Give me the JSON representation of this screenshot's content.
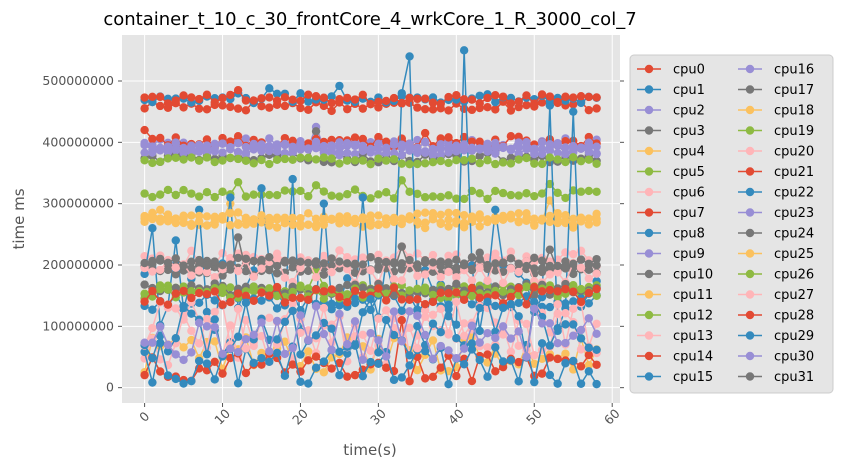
{
  "chart_data": {
    "type": "line",
    "title": "container_t_10_c_30_frontCore_4_wrkCore_1_R_3000_col_7",
    "xlabel": "time(s)",
    "ylabel": "time ms",
    "xlim": [
      -2.9,
      61
    ],
    "ylim": [
      -25000000,
      575000000
    ],
    "xticks": [
      0,
      10,
      20,
      30,
      40,
      50,
      60
    ],
    "yticks": [
      0,
      100000000,
      200000000,
      300000000,
      400000000,
      500000000
    ],
    "xtick_labels": [
      "0",
      "10",
      "20",
      "30",
      "40",
      "50",
      "60"
    ],
    "ytick_labels": [
      "0",
      "100000000",
      "200000000",
      "300000000",
      "400000000",
      "500000000"
    ],
    "grid": true,
    "legend_position": "right-outside",
    "legend_columns": 2,
    "x_count": 59,
    "series": [
      {
        "name": "cpu0",
        "color": "#E24A33",
        "base": 460000000,
        "amp": 9000000,
        "spikes": []
      },
      {
        "name": "cpu1",
        "color": "#348ABD",
        "base": 472000000,
        "amp": 8000000,
        "spikes": [
          [
            16,
            488000000
          ],
          [
            25,
            492000000
          ]
        ]
      },
      {
        "name": "cpu2",
        "color": "#988ED5",
        "base": 398000000,
        "amp": 9000000,
        "spikes": [
          [
            22,
            425000000
          ]
        ]
      },
      {
        "name": "cpu3",
        "color": "#777777",
        "base": 375000000,
        "amp": 8000000,
        "spikes": [
          [
            22,
            418000000
          ]
        ]
      },
      {
        "name": "cpu4",
        "color": "#FBC15E",
        "base": 270000000,
        "amp": 10000000,
        "spikes": [
          [
            2,
            290000000
          ],
          [
            11,
            300000000
          ],
          [
            52,
            305000000
          ]
        ]
      },
      {
        "name": "cpu5",
        "color": "#8EBA42",
        "base": 315000000,
        "amp": 8000000,
        "spikes": [
          [
            12,
            335000000
          ],
          [
            22,
            330000000
          ],
          [
            33,
            338000000
          ],
          [
            52,
            332000000
          ]
        ]
      },
      {
        "name": "cpu6",
        "color": "#FFB5B8",
        "base": 210000000,
        "amp": 14000000,
        "spikes": [
          [
            33,
            230000000
          ]
        ]
      },
      {
        "name": "cpu7",
        "color": "#E24A33",
        "base": 400000000,
        "amp": 9000000,
        "spikes": [
          [
            0,
            420000000
          ],
          [
            12,
            410000000
          ],
          [
            36,
            415000000
          ],
          [
            47,
            410000000
          ]
        ]
      },
      {
        "name": "cpu8",
        "color": "#348ABD",
        "base": 150000000,
        "amp": 60000000,
        "spikes": [
          [
            1,
            260000000
          ],
          [
            4,
            240000000
          ],
          [
            7,
            290000000
          ],
          [
            11,
            310000000
          ],
          [
            15,
            325000000
          ],
          [
            19,
            340000000
          ],
          [
            23,
            300000000
          ],
          [
            28,
            310000000
          ],
          [
            33,
            480000000
          ],
          [
            34,
            540000000
          ],
          [
            41,
            550000000
          ],
          [
            45,
            290000000
          ],
          [
            52,
            460000000
          ],
          [
            55,
            450000000
          ]
        ]
      },
      {
        "name": "cpu9",
        "color": "#988ED5",
        "base": 390000000,
        "amp": 8000000,
        "spikes": []
      },
      {
        "name": "cpu10",
        "color": "#777777",
        "base": 190000000,
        "amp": 8000000,
        "spikes": [
          [
            12,
            245000000
          ],
          [
            33,
            230000000
          ],
          [
            43,
            220000000
          ],
          [
            52,
            225000000
          ]
        ]
      },
      {
        "name": "cpu11",
        "color": "#FBC15E",
        "base": 55000000,
        "amp": 30000000,
        "spikes": []
      },
      {
        "name": "cpu12",
        "color": "#8EBA42",
        "base": 160000000,
        "amp": 8000000,
        "spikes": [
          [
            22,
            190000000
          ]
        ]
      },
      {
        "name": "cpu13",
        "color": "#FFB5B8",
        "base": 80000000,
        "amp": 45000000,
        "spikes": []
      },
      {
        "name": "cpu14",
        "color": "#E24A33",
        "base": 35000000,
        "amp": 25000000,
        "spikes": [
          [
            33,
            110000000
          ]
        ]
      },
      {
        "name": "cpu15",
        "color": "#348ABD",
        "base": 140000000,
        "amp": 15000000,
        "spikes": []
      },
      {
        "name": "cpu16",
        "color": "#988ED5",
        "base": 385000000,
        "amp": 6000000,
        "spikes": []
      },
      {
        "name": "cpu17",
        "color": "#777777",
        "base": 200000000,
        "amp": 8000000,
        "spikes": []
      },
      {
        "name": "cpu18",
        "color": "#FBC15E",
        "base": 280000000,
        "amp": 6000000,
        "spikes": []
      },
      {
        "name": "cpu19",
        "color": "#8EBA42",
        "base": 370000000,
        "amp": 6000000,
        "spikes": []
      },
      {
        "name": "cpu20",
        "color": "#FFB5B8",
        "base": 190000000,
        "amp": 20000000,
        "spikes": []
      },
      {
        "name": "cpu21",
        "color": "#E24A33",
        "base": 470000000,
        "amp": 8000000,
        "spikes": [
          [
            12,
            485000000
          ]
        ]
      },
      {
        "name": "cpu22",
        "color": "#348ABD",
        "base": 40000000,
        "amp": 35000000,
        "spikes": []
      },
      {
        "name": "cpu23",
        "color": "#988ED5",
        "base": 395000000,
        "amp": 6000000,
        "spikes": []
      },
      {
        "name": "cpu24",
        "color": "#777777",
        "base": 160000000,
        "amp": 10000000,
        "spikes": []
      },
      {
        "name": "cpu25",
        "color": "#FBC15E",
        "base": 270000000,
        "amp": 6000000,
        "spikes": []
      },
      {
        "name": "cpu26",
        "color": "#8EBA42",
        "base": 155000000,
        "amp": 10000000,
        "spikes": []
      },
      {
        "name": "cpu27",
        "color": "#FFB5B8",
        "base": 100000000,
        "amp": 40000000,
        "spikes": []
      },
      {
        "name": "cpu28",
        "color": "#E24A33",
        "base": 150000000,
        "amp": 15000000,
        "spikes": []
      },
      {
        "name": "cpu29",
        "color": "#348ABD",
        "base": 95000000,
        "amp": 50000000,
        "spikes": []
      },
      {
        "name": "cpu30",
        "color": "#988ED5",
        "base": 90000000,
        "amp": 45000000,
        "spikes": []
      },
      {
        "name": "cpu31",
        "color": "#777777",
        "base": 205000000,
        "amp": 8000000,
        "spikes": []
      }
    ]
  }
}
